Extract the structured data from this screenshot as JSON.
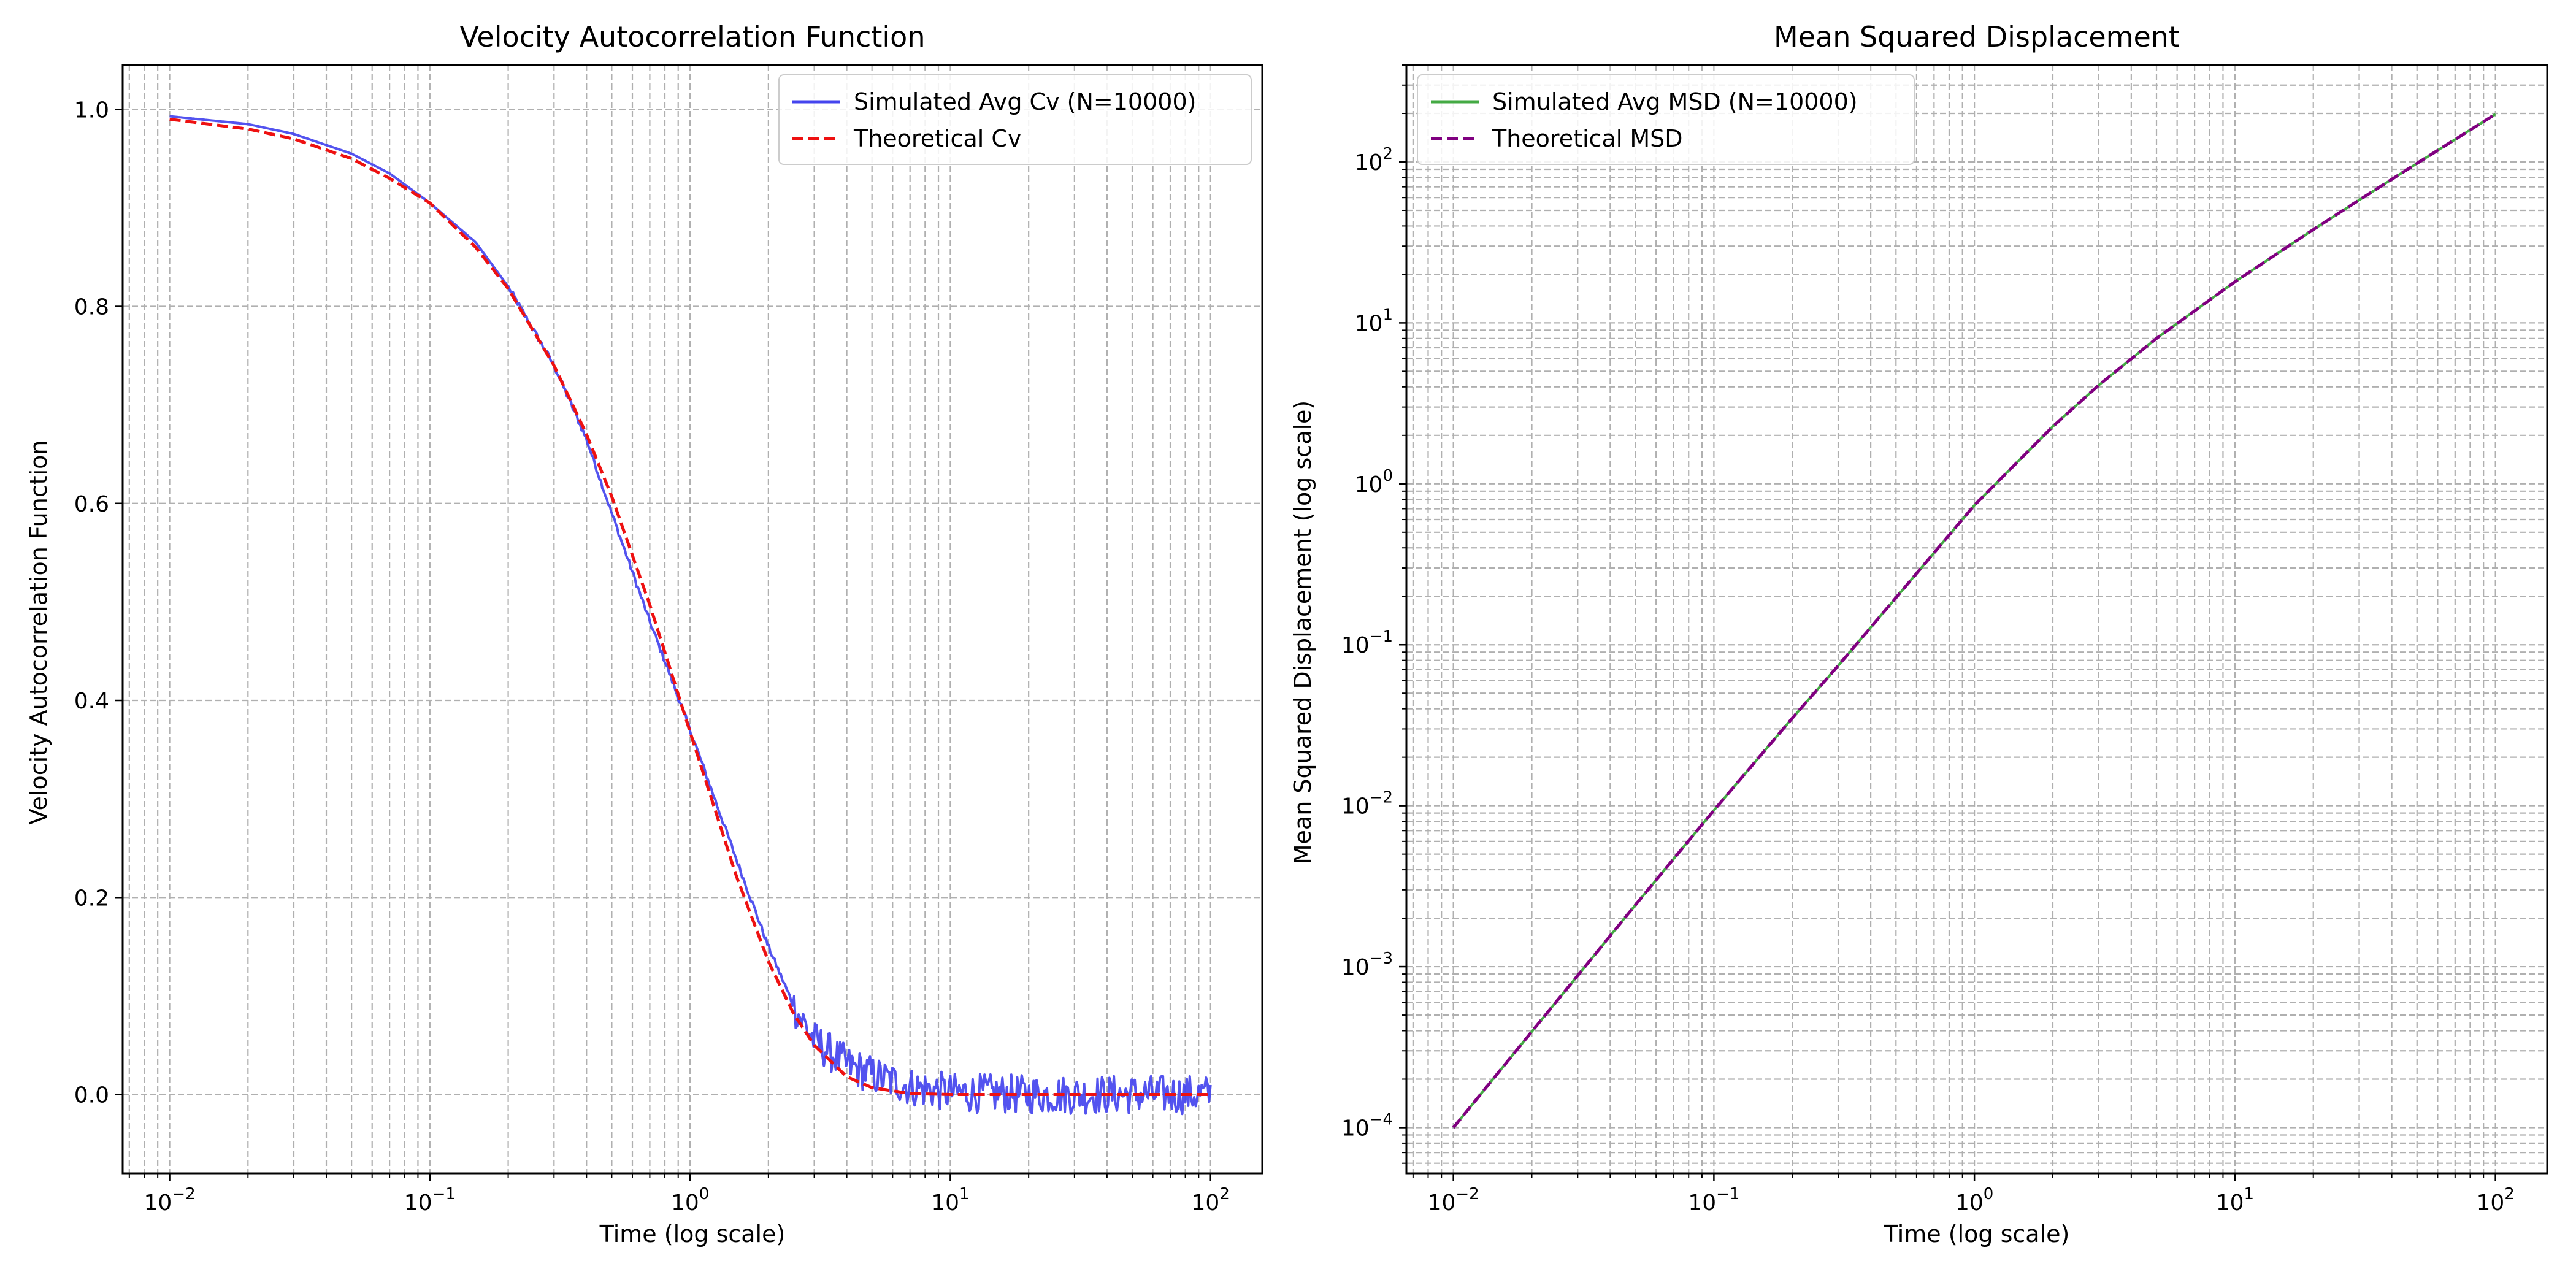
{
  "colors": {
    "sim_cv": "#4444ee",
    "theory_cv": "#ee1111",
    "sim_msd": "#44aa44",
    "theory_msd": "#800080",
    "grid": "#b0b0b0",
    "axes": "#000000"
  },
  "chart_data": [
    {
      "type": "line",
      "title": "Velocity Autocorrelation Function",
      "xlabel": "Time (log scale)",
      "ylabel": "Velocity Autocorrelation Function",
      "xscale": "log",
      "yscale": "linear",
      "xlim": [
        0.0066,
        158
      ],
      "ylim": [
        -0.08,
        1.045
      ],
      "xticks": [
        0.01,
        0.1,
        1,
        10,
        100
      ],
      "xtick_labels": [
        {
          "base": "10",
          "exp": "−2"
        },
        {
          "base": "10",
          "exp": "−1"
        },
        {
          "base": "10",
          "exp": "0"
        },
        {
          "base": "10",
          "exp": "1"
        },
        {
          "base": "10",
          "exp": "2"
        }
      ],
      "yticks": [
        0.0,
        0.2,
        0.4,
        0.6,
        0.8,
        1.0
      ],
      "ytick_labels": [
        "0.0",
        "0.2",
        "0.4",
        "0.6",
        "0.8",
        "1.0"
      ],
      "grid": true,
      "legend": "top-right",
      "series": [
        {
          "name": "Simulated Avg Cv (N=10000)",
          "style": "solid",
          "color_key": "sim_cv",
          "noise": {
            "start_x": 2.5,
            "amplitude": 0.02
          },
          "x": [
            0.01,
            0.02,
            0.03,
            0.05,
            0.07,
            0.1,
            0.15,
            0.2,
            0.3,
            0.4,
            0.5,
            0.7,
            0.8,
            1.0,
            1.5,
            2.0,
            2.5,
            3.0,
            4.0,
            5.0,
            7.0,
            10,
            20,
            50,
            100
          ],
          "y": [
            0.993,
            0.985,
            0.975,
            0.955,
            0.935,
            0.905,
            0.865,
            0.82,
            0.74,
            0.665,
            0.59,
            0.48,
            0.44,
            0.37,
            0.24,
            0.15,
            0.09,
            0.055,
            0.03,
            0.02,
            0.008,
            0.002,
            0.0,
            0.0,
            0.0
          ]
        },
        {
          "name": "Theoretical Cv",
          "style": "dashed",
          "color_key": "theory_cv",
          "x": [
            0.01,
            0.02,
            0.03,
            0.05,
            0.07,
            0.1,
            0.15,
            0.2,
            0.3,
            0.4,
            0.5,
            0.7,
            0.8,
            1.0,
            1.5,
            2.0,
            2.5,
            3.0,
            4.0,
            5.0,
            7.0,
            10,
            20,
            50,
            100
          ],
          "y": [
            0.99,
            0.98,
            0.97,
            0.95,
            0.93,
            0.905,
            0.86,
            0.818,
            0.74,
            0.67,
            0.607,
            0.497,
            0.449,
            0.368,
            0.223,
            0.135,
            0.082,
            0.05,
            0.018,
            0.007,
            0.001,
            0.0,
            0.0,
            0.0,
            0.0
          ]
        }
      ]
    },
    {
      "type": "line",
      "title": "Mean Squared Displacement",
      "xlabel": "Time (log scale)",
      "ylabel": "Mean Squared Displacement (log scale)",
      "xscale": "log",
      "yscale": "log",
      "xlim": [
        0.0066,
        158
      ],
      "ylim": [
        5.2e-05,
        400
      ],
      "xticks": [
        0.01,
        0.1,
        1,
        10,
        100
      ],
      "xtick_labels": [
        {
          "base": "10",
          "exp": "−2"
        },
        {
          "base": "10",
          "exp": "−1"
        },
        {
          "base": "10",
          "exp": "0"
        },
        {
          "base": "10",
          "exp": "1"
        },
        {
          "base": "10",
          "exp": "2"
        }
      ],
      "yticks": [
        0.0001,
        0.001,
        0.01,
        0.1,
        1,
        10,
        100
      ],
      "ytick_labels": [
        {
          "base": "10",
          "exp": "−4"
        },
        {
          "base": "10",
          "exp": "−3"
        },
        {
          "base": "10",
          "exp": "−2"
        },
        {
          "base": "10",
          "exp": "−1"
        },
        {
          "base": "10",
          "exp": "0"
        },
        {
          "base": "10",
          "exp": "1"
        },
        {
          "base": "10",
          "exp": "2"
        }
      ],
      "grid": true,
      "legend": "top-left",
      "series": [
        {
          "name": "Simulated Avg MSD (N=10000)",
          "style": "solid",
          "color_key": "sim_msd",
          "x": [
            0.01,
            0.02,
            0.03,
            0.05,
            0.1,
            0.2,
            0.3,
            0.5,
            1,
            2,
            3,
            5,
            10,
            20,
            30,
            50,
            100
          ],
          "y": [
            0.0001,
            0.000395,
            0.00088,
            0.00242,
            0.00936,
            0.035,
            0.0741,
            0.1961,
            0.7358,
            2.271,
            4.099,
            8.007,
            18.0,
            38.0,
            58.0,
            98.0,
            198.0
          ]
        },
        {
          "name": "Theoretical MSD",
          "style": "dashed",
          "color_key": "theory_msd",
          "x": [
            0.01,
            0.02,
            0.03,
            0.05,
            0.1,
            0.2,
            0.3,
            0.5,
            1,
            2,
            3,
            5,
            10,
            20,
            30,
            50,
            100
          ],
          "y": [
            0.0001,
            0.000395,
            0.00088,
            0.00242,
            0.00936,
            0.035,
            0.0741,
            0.1961,
            0.7358,
            2.271,
            4.099,
            8.007,
            18.0,
            38.0,
            58.0,
            98.0,
            198.0
          ]
        }
      ]
    }
  ]
}
